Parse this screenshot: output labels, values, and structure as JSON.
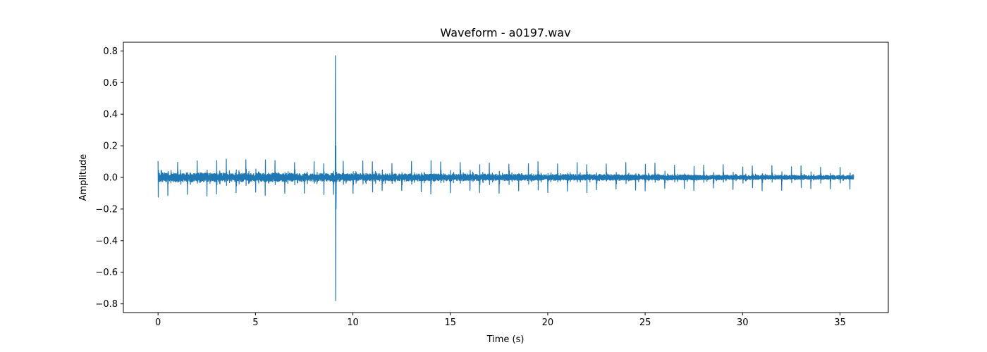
{
  "chart_data": {
    "type": "line",
    "title": "Waveform - a0197.wav",
    "xlabel": "Time (s)",
    "ylabel": "Amplitude",
    "xlim": [
      -1.78,
      37.48
    ],
    "ylim": [
      -0.855,
      0.855
    ],
    "xticks": [
      0,
      5,
      10,
      15,
      20,
      25,
      30,
      35
    ],
    "xtick_labels": [
      "0",
      "5",
      "10",
      "15",
      "20",
      "25",
      "30",
      "35"
    ],
    "yticks": [
      0.8,
      0.6,
      0.4,
      0.2,
      0.0,
      -0.2,
      -0.4,
      -0.6,
      -0.8
    ],
    "ytick_labels": [
      "0.8",
      "0.6",
      "0.4",
      "0.2",
      "0.0",
      "−0.2",
      "−0.4",
      "−0.6",
      "−0.8"
    ],
    "grid": false,
    "legend": "none",
    "series": [
      {
        "color": "#1f77b4",
        "duration_s": 35.7,
        "beat_interval_s": 0.5,
        "beat_peaks_start": 0.125,
        "beat_peaks_end": 0.08,
        "noise_amplitude_start": 0.03,
        "noise_amplitude_end": 0.012,
        "spike": {
          "t": 9.1,
          "max": 0.77,
          "min": -0.78
        }
      }
    ]
  }
}
